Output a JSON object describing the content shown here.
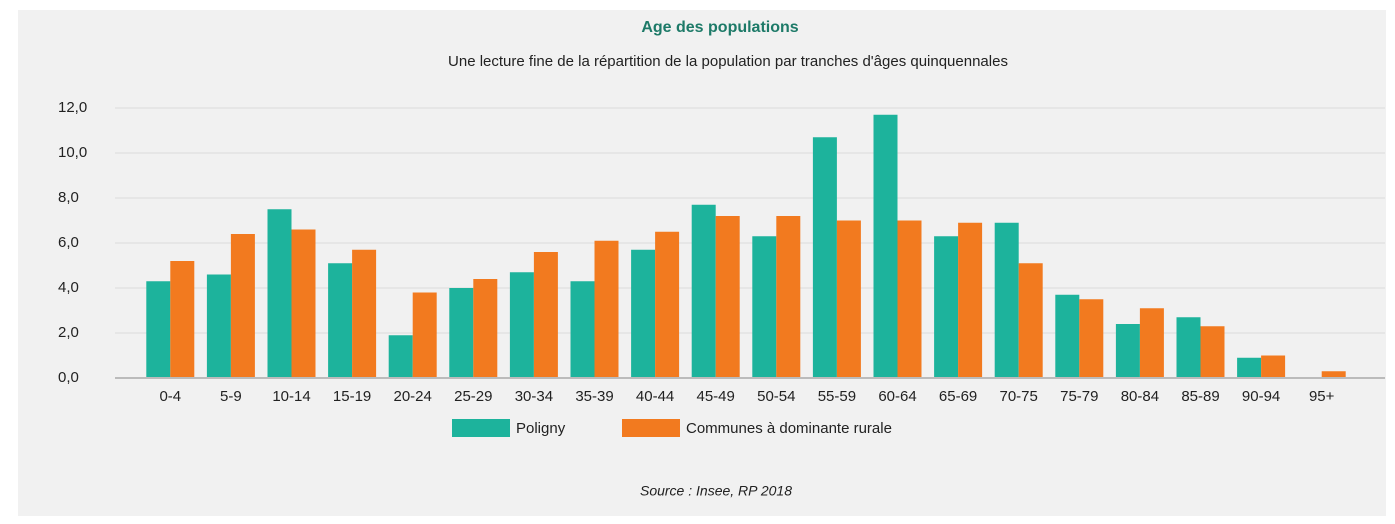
{
  "chart_data": {
    "type": "bar",
    "title": "Age des populations",
    "subtitle": "Une lecture fine de la répartition de la population par tranches d'âges quinquennales",
    "source": "Source : Insee, RP  2018",
    "categories": [
      "0-4",
      "5-9",
      "10-14",
      "15-19",
      "20-24",
      "25-29",
      "30-34",
      "35-39",
      "40-44",
      "45-49",
      "50-54",
      "55-59",
      "60-64",
      "65-69",
      "70-75",
      "75-79",
      "80-84",
      "85-89",
      "90-94",
      "95+"
    ],
    "series": [
      {
        "name": "Poligny",
        "color": "#1db39c",
        "values": [
          4.3,
          4.6,
          7.5,
          5.1,
          1.9,
          4.0,
          4.7,
          4.3,
          5.7,
          7.7,
          6.3,
          10.7,
          11.7,
          6.3,
          6.9,
          3.7,
          2.4,
          2.7,
          0.9,
          0
        ]
      },
      {
        "name": "Communes à dominante rurale",
        "color": "#f27a1f",
        "values": [
          5.2,
          6.4,
          6.6,
          5.7,
          3.8,
          4.4,
          5.6,
          6.1,
          6.5,
          7.2,
          7.2,
          7.0,
          7.0,
          6.9,
          5.1,
          3.5,
          3.1,
          2.3,
          1.0,
          0.3
        ]
      }
    ],
    "ylim": [
      0,
      12
    ],
    "yticks": [
      {
        "value": 0,
        "label": "0,0"
      },
      {
        "value": 2,
        "label": "2,0"
      },
      {
        "value": 4,
        "label": "4,0"
      },
      {
        "value": 6,
        "label": "6,0"
      },
      {
        "value": 8,
        "label": "8,0"
      },
      {
        "value": 10,
        "label": "10,0"
      },
      {
        "value": 12,
        "label": "12,0"
      }
    ],
    "grid": true
  }
}
